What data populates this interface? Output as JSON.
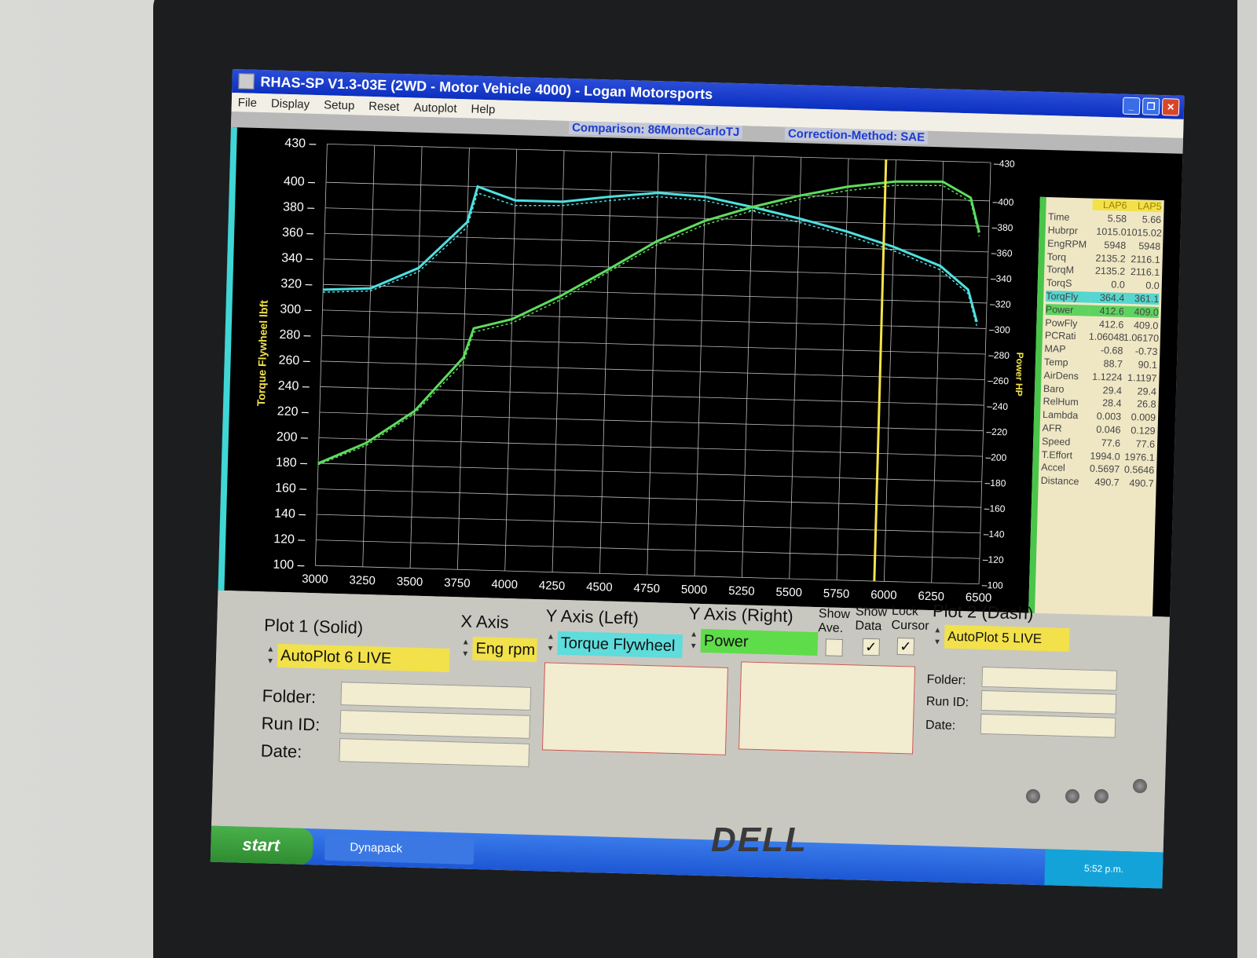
{
  "window": {
    "title": "RHAS-SP V1.3-03E  (2WD - Motor Vehicle 4000) - Logan Motorsports"
  },
  "menu": [
    "File",
    "Display",
    "Setup",
    "Reset",
    "Autoplot",
    "Help"
  ],
  "info": {
    "comparison": "Comparison: 86MonteCarloTJ",
    "correction": "Correction-Method: SAE"
  },
  "datapanel": {
    "headers": [
      "",
      "LAP6",
      "LAP5"
    ],
    "rows": [
      [
        "Time",
        "5.58",
        "5.66"
      ],
      [
        "Hubrpr",
        "1015.0",
        "1015.02"
      ],
      [
        "EngRPM",
        "5948",
        "5948"
      ],
      [
        "Torq",
        "2135.2",
        "2116.1"
      ],
      [
        "TorqM",
        "2135.2",
        "2116.1"
      ],
      [
        "TorqS",
        "0.0",
        "0.0"
      ],
      [
        "TorqFly",
        "364.4",
        "361.1"
      ],
      [
        "Power",
        "412.6",
        "409.0"
      ],
      [
        "PowFly",
        "412.6",
        "409.0"
      ],
      [
        "PCRati",
        "1.06048",
        "1.06170"
      ],
      [
        "MAP",
        "-0.68",
        "-0.73"
      ],
      [
        "Temp",
        "88.7",
        "90.1"
      ],
      [
        "AirDens",
        "1.1224",
        "1.1197"
      ],
      [
        "Baro",
        "29.4",
        "29.4"
      ],
      [
        "RelHum",
        "28.4",
        "26.8"
      ],
      [
        "Lambda",
        "0.003",
        "0.009"
      ],
      [
        "AFR",
        "0.046",
        "0.129"
      ],
      [
        "Speed",
        "77.6",
        "77.6"
      ],
      [
        "T.Effort",
        "1994.0",
        "1976.1"
      ],
      [
        "Accel",
        "0.5697",
        "0.5646"
      ],
      [
        "Distance",
        "490.7",
        "490.7"
      ]
    ]
  },
  "controls": {
    "plot1_label": "Plot 1 (Solid)",
    "plot1_value": "AutoPlot 6 LIVE",
    "xaxis_label": "X Axis",
    "xaxis_value": "Eng rpm",
    "yleft_label": "Y Axis (Left)",
    "yleft_value": "Torque Flywheel",
    "yright_label": "Y Axis (Right)",
    "yright_value": "Power",
    "show_ave": "Show Ave.",
    "show_data": "Show Data",
    "lock_cursor": "Lock Cursor",
    "show_ave_checked": false,
    "show_data_checked": true,
    "lock_cursor_checked": true,
    "plot2_label": "Plot 2 (Dash)",
    "plot2_value": "AutoPlot 5 LIVE",
    "folder": "Folder:",
    "runid": "Run ID:",
    "date": "Date:"
  },
  "taskbar": {
    "start": "start",
    "task": "Dynapack",
    "clock": "5:52 p.m."
  },
  "monitor_brand": "DELL",
  "chart_data": {
    "type": "line",
    "xlabel": "",
    "ylabel_left": "Torque Flywheel lbft",
    "ylabel_right": "Power HP",
    "xlim": [
      3000,
      6500
    ],
    "ylim_left": [
      100,
      430
    ],
    "ylim_right": [
      100,
      430
    ],
    "x_ticks": [
      3000,
      3250,
      3500,
      3750,
      4000,
      4250,
      4500,
      4750,
      5000,
      5250,
      5500,
      5750,
      6000,
      6250,
      6500
    ],
    "y_left_ticks": [
      100,
      120,
      140,
      160,
      180,
      200,
      220,
      240,
      260,
      280,
      300,
      320,
      340,
      360,
      380,
      400,
      430
    ],
    "y_right_ticks": [
      100,
      120,
      140,
      160,
      180,
      200,
      220,
      240,
      260,
      280,
      300,
      320,
      340,
      360,
      380,
      400,
      430
    ],
    "grid": true,
    "cursor_x": 5948,
    "x": [
      3000,
      3250,
      3500,
      3750,
      3800,
      4000,
      4250,
      4500,
      4750,
      5000,
      5250,
      5500,
      5750,
      6000,
      6250,
      6400,
      6450
    ],
    "series": [
      {
        "name": "Torque Flywheel",
        "plot": "LAP6",
        "style": "solid",
        "axis": "left",
        "color": "#4fe0e0",
        "values": [
          316,
          318,
          335,
          372,
          400,
          390,
          390,
          395,
          399,
          397,
          390,
          382,
          373,
          362,
          348,
          330,
          305
        ]
      },
      {
        "name": "Power",
        "plot": "LAP6",
        "style": "solid",
        "axis": "right",
        "color": "#5fdc5f",
        "values": [
          180,
          197,
          223,
          266,
          289,
          297,
          316,
          338,
          361,
          378,
          390,
          400,
          408,
          413,
          414,
          402,
          375
        ]
      },
      {
        "name": "Torque Flywheel",
        "plot": "LAP5",
        "style": "dash",
        "axis": "left",
        "color": "#4fe0e0",
        "values": [
          314,
          316,
          332,
          368,
          395,
          386,
          387,
          392,
          396,
          394,
          387,
          379,
          370,
          359,
          345,
          327,
          302
        ]
      },
      {
        "name": "Power",
        "plot": "LAP5",
        "style": "dash",
        "axis": "right",
        "color": "#5fdc5f",
        "values": [
          179,
          195,
          221,
          262,
          286,
          294,
          313,
          336,
          358,
          375,
          387,
          397,
          405,
          410,
          411,
          399,
          372
        ]
      }
    ]
  }
}
